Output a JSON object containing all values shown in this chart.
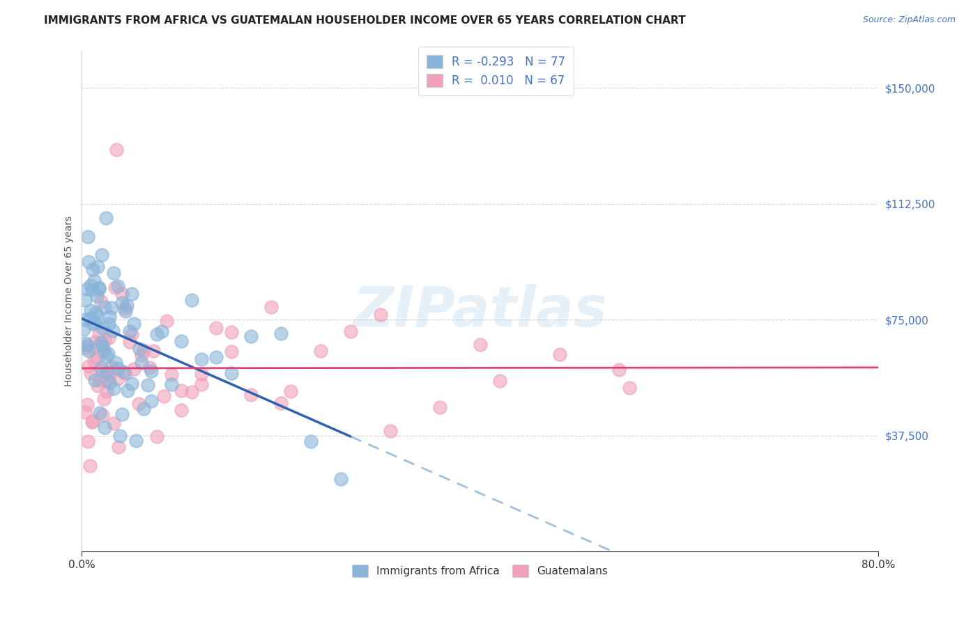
{
  "title": "IMMIGRANTS FROM AFRICA VS GUATEMALAN HOUSEHOLDER INCOME OVER 65 YEARS CORRELATION CHART",
  "source": "Source: ZipAtlas.com",
  "ylabel": "Householder Income Over 65 years",
  "ytick_labels": [
    "$37,500",
    "$75,000",
    "$112,500",
    "$150,000"
  ],
  "ytick_values": [
    37500,
    75000,
    112500,
    150000
  ],
  "ymin": 0,
  "ymax": 162000,
  "xmin": 0.0,
  "xmax": 0.8,
  "color_blue": "#89b4d9",
  "color_pink": "#f0a0b8",
  "line_blue": "#3060b0",
  "line_pink": "#e0407a",
  "line_blue_dashed": "#a0c0e0",
  "background": "#ffffff",
  "title_fontsize": 11,
  "tick_fontsize": 11,
  "ylabel_fontsize": 10,
  "source_fontsize": 9
}
